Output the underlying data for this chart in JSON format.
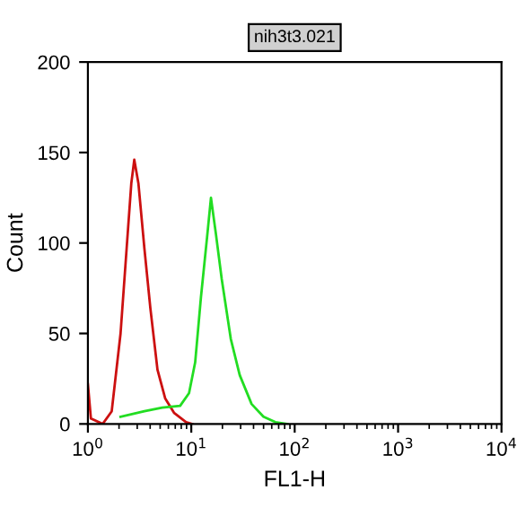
{
  "chart_data": {
    "type": "line",
    "title": "nih3t3.021",
    "xlabel": "FL1-H",
    "ylabel": "Count",
    "log": "x",
    "xlim": [
      1,
      10000
    ],
    "xticks": [
      {
        "value": 1,
        "label": "10$^{0}$"
      },
      {
        "value": 10,
        "label": "10$^{1}$"
      },
      {
        "value": 100,
        "label": "10$^{2}$"
      },
      {
        "value": 1000,
        "label": "10$^{3}$"
      },
      {
        "value": 10000,
        "label": "10$^{4}$"
      }
    ],
    "ylim": [
      0,
      200
    ],
    "yticks": [
      0,
      50,
      100,
      150,
      200
    ],
    "grid": false,
    "legend": false,
    "series": [
      {
        "color": "#cc1010",
        "x": [
          1.0,
          1.07,
          1.39,
          1.7,
          2.07,
          2.37,
          2.63,
          2.81,
          3.08,
          3.52,
          4.02,
          4.71,
          5.6,
          6.84,
          8.91,
          10.2
        ],
        "values": [
          22,
          3,
          0,
          7,
          50,
          97,
          133,
          146,
          133,
          97,
          64,
          30,
          14,
          6,
          1,
          0
        ]
      },
      {
        "color": "#22dd22",
        "x": [
          2.07,
          3.52,
          5.24,
          7.8,
          9.51,
          10.9,
          12.4,
          14.2,
          15.5,
          17.3,
          19.7,
          24.1,
          29.4,
          38.3,
          49.9,
          65.0,
          84.8
        ],
        "values": [
          4,
          7,
          9,
          10,
          17,
          34,
          70,
          103,
          125,
          105,
          80,
          47,
          27,
          11,
          4,
          1,
          0
        ]
      }
    ]
  }
}
